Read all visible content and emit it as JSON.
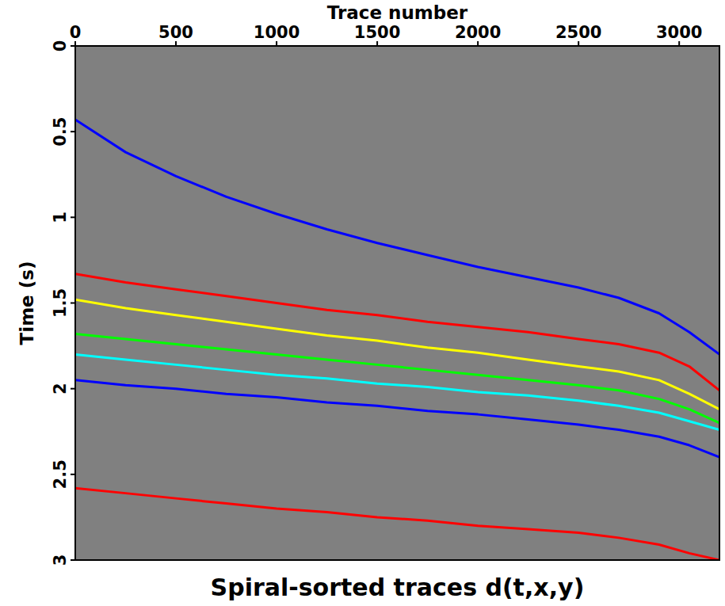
{
  "chart_data": {
    "type": "line",
    "title": "Spiral-sorted traces d(t,x,y)",
    "x_label": "Trace number",
    "y_label": "Time (s)",
    "x": [
      0,
      250,
      500,
      750,
      1000,
      1250,
      1500,
      1750,
      2000,
      2250,
      2500,
      2700,
      2900,
      3050,
      3200
    ],
    "xlim": [
      0,
      3200
    ],
    "xticks": [
      0,
      500,
      1000,
      1500,
      2000,
      2500,
      3000
    ],
    "ylim": [
      3,
      0
    ],
    "yticks": [
      0,
      0.5,
      1,
      1.5,
      2,
      2.5,
      3
    ],
    "grid": false,
    "series": [
      {
        "color": "#0000ff",
        "values": [
          0.43,
          0.62,
          0.76,
          0.88,
          0.98,
          1.07,
          1.15,
          1.22,
          1.29,
          1.35,
          1.41,
          1.47,
          1.56,
          1.67,
          1.8
        ]
      },
      {
        "color": "#ff0000",
        "values": [
          1.33,
          1.38,
          1.42,
          1.46,
          1.5,
          1.54,
          1.57,
          1.61,
          1.64,
          1.67,
          1.71,
          1.74,
          1.79,
          1.87,
          2.01
        ]
      },
      {
        "color": "#ffff00",
        "values": [
          1.48,
          1.53,
          1.57,
          1.61,
          1.65,
          1.69,
          1.72,
          1.76,
          1.79,
          1.83,
          1.87,
          1.9,
          1.95,
          2.03,
          2.12
        ]
      },
      {
        "color": "#00ff00",
        "values": [
          1.68,
          1.71,
          1.74,
          1.77,
          1.8,
          1.83,
          1.86,
          1.89,
          1.92,
          1.95,
          1.98,
          2.01,
          2.06,
          2.12,
          2.2
        ]
      },
      {
        "color": "#00ffff",
        "values": [
          1.8,
          1.83,
          1.86,
          1.89,
          1.92,
          1.94,
          1.97,
          1.99,
          2.02,
          2.04,
          2.07,
          2.1,
          2.14,
          2.19,
          2.24
        ]
      },
      {
        "color": "#0000ff",
        "values": [
          1.95,
          1.98,
          2.0,
          2.03,
          2.05,
          2.08,
          2.1,
          2.13,
          2.15,
          2.18,
          2.21,
          2.24,
          2.28,
          2.33,
          2.4
        ]
      },
      {
        "color": "#ff0000",
        "values": [
          2.58,
          2.61,
          2.64,
          2.67,
          2.7,
          2.72,
          2.75,
          2.77,
          2.8,
          2.82,
          2.84,
          2.87,
          2.91,
          2.96,
          3.0
        ]
      }
    ]
  }
}
